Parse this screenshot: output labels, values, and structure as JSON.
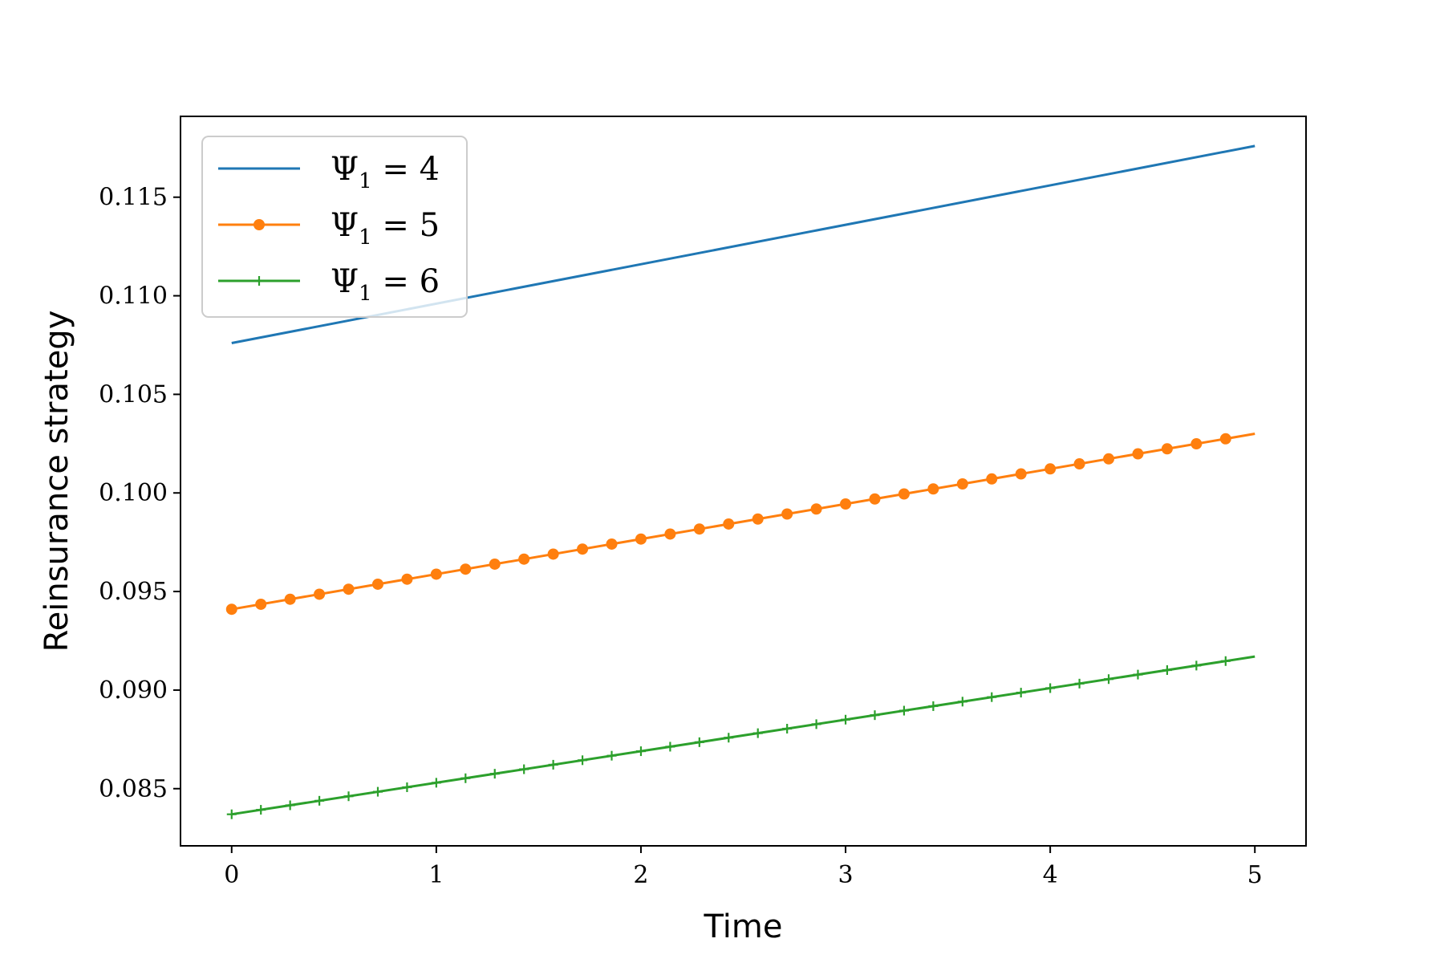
{
  "chart_data": {
    "type": "line",
    "title": "",
    "xlabel": "Time",
    "ylabel": "Reinsurance strategy",
    "xlim": [
      -0.25,
      5.25
    ],
    "ylim": [
      0.0821,
      0.1191
    ],
    "xticks": [
      0,
      1,
      2,
      3,
      4,
      5
    ],
    "xtick_labels": [
      "0",
      "1",
      "2",
      "3",
      "4",
      "5"
    ],
    "yticks": [
      0.085,
      0.09,
      0.095,
      0.1,
      0.105,
      0.11,
      0.115
    ],
    "ytick_labels": [
      "0.085",
      "0.090",
      "0.095",
      "0.100",
      "0.105",
      "0.110",
      "0.115"
    ],
    "grid": false,
    "legend_position": "top-left",
    "series": [
      {
        "name": "Ψ",
        "name_sub": "1",
        "name_rest": " = 4",
        "color": "#1f77b4",
        "marker": "none",
        "x": [
          0,
          5
        ],
        "y": [
          0.1076,
          0.1176
        ]
      },
      {
        "name": "Ψ",
        "name_sub": "1",
        "name_rest": " = 5",
        "color": "#ff7f0e",
        "marker": "circle",
        "x": [
          0,
          5
        ],
        "y": [
          0.0941,
          0.103
        ],
        "marker_count": 35
      },
      {
        "name": "Ψ",
        "name_sub": "1",
        "name_rest": " = 6",
        "color": "#2ca02c",
        "marker": "plus",
        "x": [
          0,
          5
        ],
        "y": [
          0.0837,
          0.0917
        ],
        "marker_count": 35
      }
    ]
  }
}
